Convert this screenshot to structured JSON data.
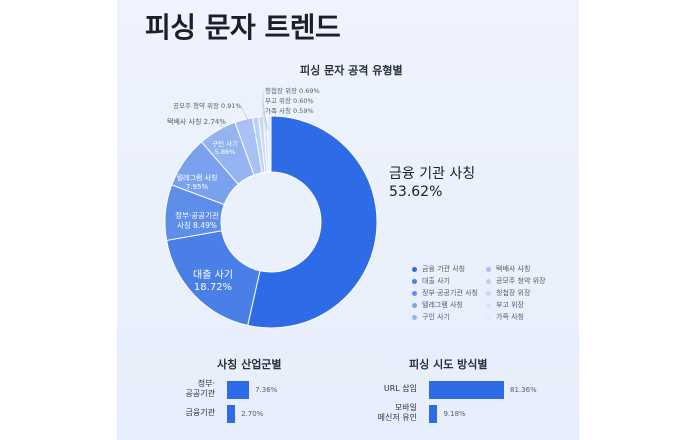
{
  "header": {
    "title_main": "피싱 문자 트렌드"
  },
  "chart_data": [
    {
      "type": "pie",
      "title": "피싱 문자 공격 유형별",
      "categories": [
        "금융 기관 사칭",
        "대출 사기",
        "정부·공공기관 사칭",
        "텔레그램 사칭",
        "구인 사기",
        "택배사 사칭",
        "공모주 청약 위장",
        "청첩장 위장",
        "부고 위장",
        "가족 사칭"
      ],
      "values": [
        53.62,
        18.72,
        8.49,
        7.95,
        5.86,
        2.74,
        0.91,
        0.69,
        0.6,
        0.59
      ],
      "slice_labels": [
        [
          "금융 기관 사칭",
          "53.62%"
        ],
        [
          "대출 사기",
          "18.72%"
        ],
        [
          "정부·공공기관",
          "사칭 8.49%"
        ],
        [
          "텔레그램 사칭",
          "7.95%"
        ],
        [
          "구인 사기",
          "5.86%"
        ],
        [
          "택배사 사칭 2.74%"
        ],
        [
          "공모주 청약 위장 0.91%"
        ],
        [
          "청첩장 위장 0.69%"
        ],
        [
          "부고 위장 0.60%"
        ],
        [
          "가족 사칭 0.59%"
        ]
      ],
      "colors": [
        "#2e6be6",
        "#4a7fe8",
        "#5f8eea",
        "#7aa1ee",
        "#93b3f1",
        "#a9c2f3",
        "#bccff5",
        "#cbd9f7",
        "#d8e2f8",
        "#e3eafa"
      ],
      "legend": {
        "placement": "bottom-right",
        "items": [
          "금융 기관 사칭",
          "대출 사기",
          "정부·공공기관 사칭",
          "텔레그램 사칭",
          "구인 사기",
          "택배사 사칭",
          "공모주 청약 위장",
          "청첩장 위장",
          "부고 위장",
          "가족 사칭"
        ]
      }
    },
    {
      "type": "bar",
      "orientation": "horizontal",
      "title": "사칭 산업군별",
      "categories": [
        "정부·\n공공기관",
        "금융기관"
      ],
      "values": [
        7.36,
        2.7
      ],
      "value_labels": [
        "7.36%",
        "2.70%"
      ],
      "color": "#2e6be6"
    },
    {
      "type": "bar",
      "orientation": "horizontal",
      "title": "피싱 시도 방식별",
      "categories": [
        "URL 삽입",
        "모바일\n메신저 유인"
      ],
      "values": [
        81.36,
        9.18
      ],
      "value_labels": [
        "81.36%",
        "9.18%"
      ],
      "color": "#2e6be6"
    }
  ]
}
